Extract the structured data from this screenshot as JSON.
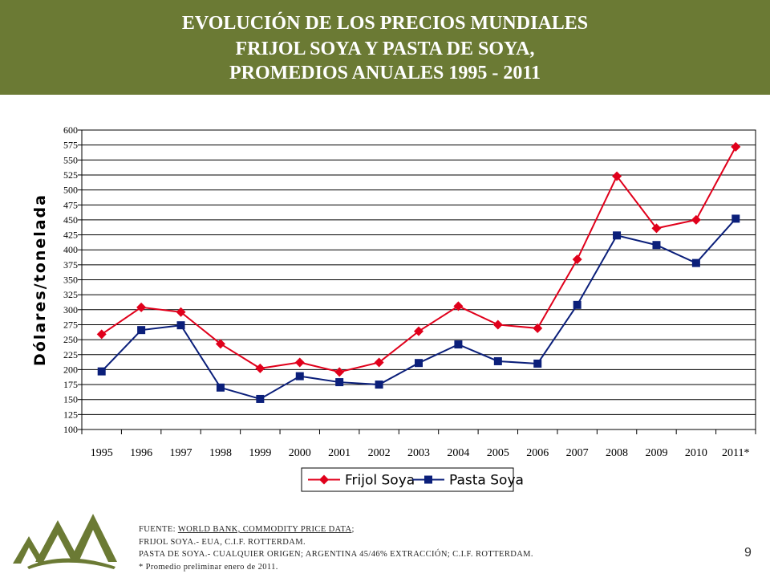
{
  "header": {
    "title_line1": "EVOLUCIÓN DE LOS PRECIOS MUNDIALES",
    "title_line2": "FRIJOL SOYA Y PASTA DE SOYA,",
    "title_line3": "PROMEDIOS ANUALES 1995  - 2011"
  },
  "colors": {
    "header_bg": "#6b7a34",
    "frijol": "#e0001b",
    "pasta": "#0b1f7a",
    "logo": "#6b7a34"
  },
  "chart_data": {
    "type": "line",
    "ylabel": "Dólares/tonelada",
    "xlabel": "",
    "ylim": [
      100,
      600
    ],
    "yticks": [
      100,
      125,
      150,
      175,
      200,
      225,
      250,
      275,
      300,
      325,
      350,
      375,
      400,
      425,
      450,
      475,
      500,
      525,
      550,
      575,
      600
    ],
    "categories": [
      "1995",
      "1996",
      "1997",
      "1998",
      "1999",
      "2000",
      "2001",
      "2002",
      "2003",
      "2004",
      "2005",
      "2006",
      "2007",
      "2008",
      "2009",
      "2010",
      "2011*"
    ],
    "grid": true,
    "legend_position": "bottom-center",
    "series": [
      {
        "name": "Frijol Soya",
        "marker": "diamond",
        "values": [
          259,
          304,
          296,
          243,
          202,
          212,
          196,
          212,
          264,
          306,
          275,
          269,
          384,
          523,
          436,
          450,
          572
        ]
      },
      {
        "name": "Pasta Soya",
        "marker": "square",
        "values": [
          197,
          266,
          274,
          170,
          151,
          189,
          179,
          175,
          211,
          242,
          214,
          210,
          308,
          424,
          408,
          378,
          452
        ]
      }
    ]
  },
  "footnotes": {
    "source_prefix": "FUENTE: ",
    "source_link": "WORLD  BANK, COMMODITY  PRICE  DATA",
    "source_suffix": ";",
    "line2": "FRIJOL  SOYA.-  EUA, C.I.F.  ROTTERDAM.",
    "line3": "PASTA DE SOYA.- CUALQUIER ORIGEN; ARGENTINA 45/46% EXTRACCIÓN; C.I.F.  ROTTERDAM.",
    "line4": " * Promedio preliminar enero de 2011."
  },
  "slide_number": "9"
}
